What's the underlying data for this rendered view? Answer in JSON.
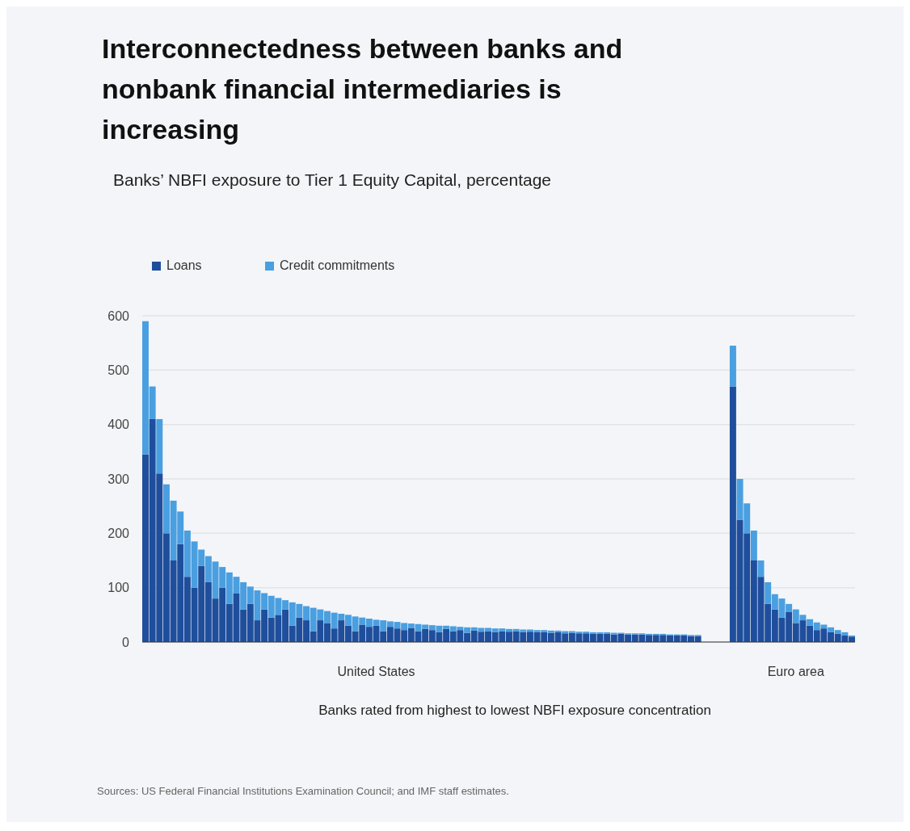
{
  "chart_data": {
    "type": "bar",
    "stacked": true,
    "title": "Interconnectedness between banks and nonbank financial intermediaries is increasing",
    "subtitle": "Banks’ NBFI exposure to Tier 1 Equity Capital, percentage",
    "xlabel": "Banks rated from highest to lowest NBFI exposure concentration",
    "annotations": [
      "Sources: US Federal Financial Institutions Examination Council; and IMF staff estimates."
    ],
    "categories": [
      null,
      null,
      null,
      null,
      null,
      null,
      null,
      null,
      null,
      null,
      null,
      null,
      null,
      null,
      null,
      null,
      null,
      null,
      null,
      null,
      null,
      null,
      null,
      null,
      null,
      null,
      null,
      null,
      null,
      null,
      null,
      null,
      null,
      "United States",
      null,
      null,
      null,
      null,
      null,
      null,
      null,
      null,
      null,
      null,
      null,
      null,
      null,
      null,
      null,
      null,
      null,
      null,
      null,
      null,
      null,
      null,
      null,
      null,
      null,
      null,
      null,
      null,
      null,
      null,
      null,
      null,
      null,
      null,
      null,
      null,
      null,
      null,
      null,
      null,
      null,
      null,
      null,
      null,
      null,
      null,
      null,
      null,
      null,
      null,
      null,
      null,
      null,
      null,
      null,
      null,
      null,
      null,
      null,
      "Euro area",
      null,
      null,
      null,
      null,
      null,
      null,
      null,
      null
    ],
    "series": [
      {
        "name": "Loans",
        "color": "#1f4e9c",
        "values": [
          345,
          410,
          310,
          200,
          150,
          180,
          120,
          100,
          140,
          110,
          80,
          100,
          70,
          90,
          60,
          70,
          40,
          60,
          45,
          50,
          60,
          30,
          45,
          40,
          20,
          40,
          35,
          25,
          40,
          30,
          20,
          32,
          28,
          30,
          20,
          28,
          25,
          22,
          26,
          20,
          24,
          22,
          18,
          24,
          20,
          22,
          17,
          21,
          19,
          20,
          18,
          20,
          19,
          20,
          18,
          19,
          18,
          18,
          17,
          18,
          16,
          17,
          16,
          16,
          15,
          15,
          15,
          14,
          15,
          14,
          14,
          14,
          13,
          13,
          13,
          12,
          12,
          12,
          11,
          11,
          null,
          null,
          null,
          null,
          470,
          225,
          200,
          150,
          120,
          70,
          60,
          45,
          55,
          35,
          40,
          30,
          22,
          25,
          18,
          15,
          12,
          10
        ]
      },
      {
        "name": "Credit commitments",
        "color": "#4a9fe0",
        "values": [
          245,
          60,
          100,
          90,
          110,
          60,
          85,
          85,
          30,
          48,
          68,
          38,
          58,
          30,
          50,
          32,
          55,
          30,
          40,
          31,
          17,
          43,
          25,
          26,
          43,
          20,
          22,
          29,
          12,
          20,
          27,
          13,
          15,
          11,
          20,
          10,
          12,
          13,
          8,
          13,
          8,
          9,
          12,
          6,
          9,
          6,
          10,
          6,
          7,
          6,
          7,
          5,
          5,
          4,
          5,
          4,
          4,
          4,
          4,
          3,
          4,
          3,
          3,
          3,
          3,
          3,
          3,
          3,
          2,
          2,
          2,
          2,
          2,
          2,
          2,
          2,
          2,
          2,
          2,
          2,
          null,
          null,
          null,
          null,
          75,
          75,
          55,
          55,
          30,
          40,
          28,
          35,
          15,
          25,
          10,
          12,
          14,
          7,
          9,
          7,
          6,
          2
        ]
      }
    ],
    "ylim": [
      0,
      600
    ],
    "yticks": [
      0,
      100,
      200,
      300,
      400,
      500,
      600
    ],
    "grid": "y",
    "legend": "top left"
  }
}
